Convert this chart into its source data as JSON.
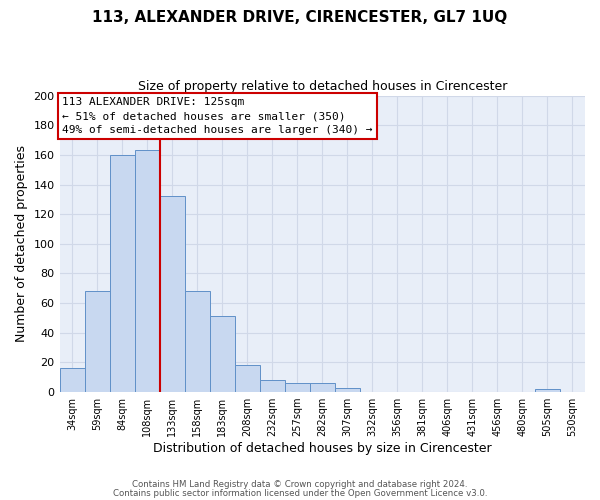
{
  "title": "113, ALEXANDER DRIVE, CIRENCESTER, GL7 1UQ",
  "subtitle": "Size of property relative to detached houses in Cirencester",
  "xlabel": "Distribution of detached houses by size in Cirencester",
  "ylabel": "Number of detached properties",
  "bin_labels": [
    "34sqm",
    "59sqm",
    "84sqm",
    "108sqm",
    "133sqm",
    "158sqm",
    "183sqm",
    "208sqm",
    "232sqm",
    "257sqm",
    "282sqm",
    "307sqm",
    "332sqm",
    "356sqm",
    "381sqm",
    "406sqm",
    "431sqm",
    "456sqm",
    "480sqm",
    "505sqm",
    "530sqm"
  ],
  "bar_values": [
    16,
    68,
    160,
    163,
    132,
    68,
    51,
    18,
    8,
    6,
    6,
    3,
    0,
    0,
    0,
    0,
    0,
    0,
    0,
    2,
    0
  ],
  "bar_color": "#c8d8f0",
  "bar_edge_color": "#6090c8",
  "vline_color": "#cc0000",
  "ylim": [
    0,
    200
  ],
  "yticks": [
    0,
    20,
    40,
    60,
    80,
    100,
    120,
    140,
    160,
    180,
    200
  ],
  "annotation_title": "113 ALEXANDER DRIVE: 125sqm",
  "annotation_line1": "← 51% of detached houses are smaller (350)",
  "annotation_line2": "49% of semi-detached houses are larger (340) →",
  "annotation_box_color": "#ffffff",
  "annotation_box_edge": "#cc0000",
  "footer_line1": "Contains HM Land Registry data © Crown copyright and database right 2024.",
  "footer_line2": "Contains public sector information licensed under the Open Government Licence v3.0.",
  "plot_bg_color": "#e8eef8",
  "fig_bg_color": "#ffffff",
  "grid_color": "#d0d8e8"
}
